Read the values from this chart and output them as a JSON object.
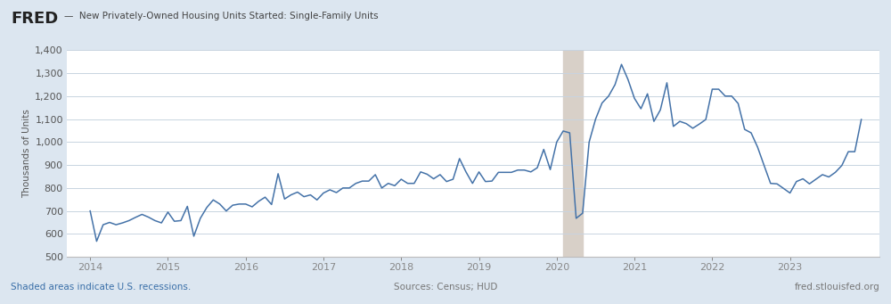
{
  "title": "New Privately-Owned Housing Units Started: Single-Family Units",
  "ylabel": "Thousands of Units",
  "line_color": "#4472a8",
  "bg_color": "#dce6f0",
  "plot_bg_color": "#ffffff",
  "inner_bg_color": "#f8f8f8",
  "recession_color": "#d8d0c8",
  "recession_alpha": 1.0,
  "ylim": [
    500,
    1400
  ],
  "yticks": [
    500,
    600,
    700,
    800,
    900,
    1000,
    1100,
    1200,
    1300,
    1400
  ],
  "xtick_labels": [
    "2014",
    "2015",
    "2016",
    "2017",
    "2018",
    "2019",
    "2020",
    "2021",
    "2022",
    "2023"
  ],
  "footer_left": "Shaded areas indicate U.S. recessions.",
  "footer_center": "Sources: Census; HUD",
  "footer_right": "fred.stlouisfed.org",
  "recession_start": 2020.083,
  "recession_end": 2020.33,
  "xlim_left": 2013.7,
  "xlim_right": 2024.15,
  "data": {
    "dates": [
      2014.0,
      2014.083,
      2014.167,
      2014.25,
      2014.333,
      2014.417,
      2014.5,
      2014.583,
      2014.667,
      2014.75,
      2014.833,
      2014.917,
      2015.0,
      2015.083,
      2015.167,
      2015.25,
      2015.333,
      2015.417,
      2015.5,
      2015.583,
      2015.667,
      2015.75,
      2015.833,
      2015.917,
      2016.0,
      2016.083,
      2016.167,
      2016.25,
      2016.333,
      2016.417,
      2016.5,
      2016.583,
      2016.667,
      2016.75,
      2016.833,
      2016.917,
      2017.0,
      2017.083,
      2017.167,
      2017.25,
      2017.333,
      2017.417,
      2017.5,
      2017.583,
      2017.667,
      2017.75,
      2017.833,
      2017.917,
      2018.0,
      2018.083,
      2018.167,
      2018.25,
      2018.333,
      2018.417,
      2018.5,
      2018.583,
      2018.667,
      2018.75,
      2018.833,
      2018.917,
      2019.0,
      2019.083,
      2019.167,
      2019.25,
      2019.333,
      2019.417,
      2019.5,
      2019.583,
      2019.667,
      2019.75,
      2019.833,
      2019.917,
      2020.0,
      2020.083,
      2020.167,
      2020.25,
      2020.333,
      2020.417,
      2020.5,
      2020.583,
      2020.667,
      2020.75,
      2020.833,
      2020.917,
      2021.0,
      2021.083,
      2021.167,
      2021.25,
      2021.333,
      2021.417,
      2021.5,
      2021.583,
      2021.667,
      2021.75,
      2021.833,
      2021.917,
      2022.0,
      2022.083,
      2022.167,
      2022.25,
      2022.333,
      2022.417,
      2022.5,
      2022.583,
      2022.667,
      2022.75,
      2022.833,
      2022.917,
      2023.0,
      2023.083,
      2023.167,
      2023.25,
      2023.333,
      2023.417,
      2023.5,
      2023.583,
      2023.667,
      2023.75,
      2023.833,
      2023.917
    ],
    "values": [
      700,
      568,
      640,
      650,
      640,
      648,
      658,
      672,
      685,
      673,
      658,
      648,
      695,
      655,
      658,
      720,
      590,
      668,
      715,
      748,
      730,
      700,
      725,
      730,
      730,
      718,
      742,
      760,
      728,
      862,
      752,
      770,
      782,
      762,
      770,
      748,
      778,
      792,
      780,
      800,
      800,
      820,
      830,
      830,
      858,
      800,
      820,
      810,
      838,
      820,
      820,
      870,
      860,
      840,
      858,
      828,
      838,
      928,
      870,
      820,
      870,
      828,
      830,
      868,
      868,
      868,
      878,
      878,
      870,
      888,
      968,
      880,
      1000,
      1048,
      1040,
      668,
      690,
      1000,
      1100,
      1170,
      1200,
      1250,
      1338,
      1272,
      1190,
      1145,
      1210,
      1090,
      1140,
      1258,
      1068,
      1090,
      1080,
      1060,
      1078,
      1098,
      1230,
      1230,
      1200,
      1200,
      1168,
      1055,
      1040,
      978,
      898,
      820,
      818,
      798,
      778,
      828,
      840,
      818,
      838,
      858,
      848,
      868,
      898,
      958,
      958,
      1098
    ]
  }
}
